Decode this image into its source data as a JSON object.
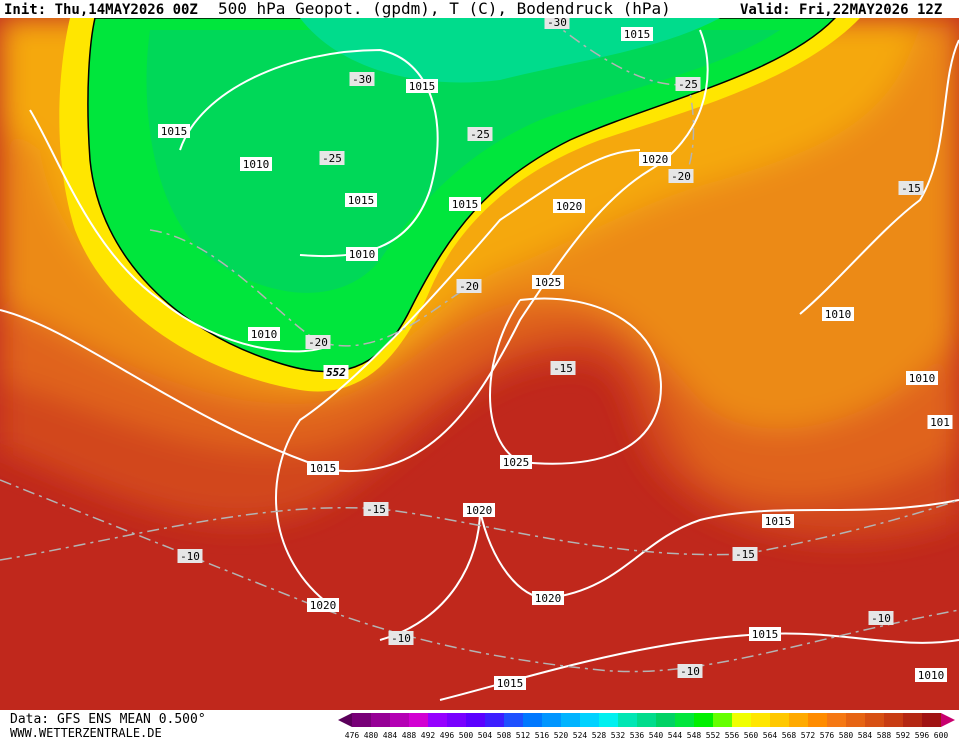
{
  "header": {
    "init": "Init: Thu,14MAY2026 00Z",
    "title": "500 hPa Geopot. (gpdm), T (C), Bodendruck (hPa)",
    "valid": "Valid: Fri,22MAY2026 12Z"
  },
  "footer": {
    "source": "Data: GFS ENS MEAN 0.500°",
    "site": "WWW.WETTERZENTRALE.DE"
  },
  "contour_labels": [
    1015,
    -30,
    1015,
    -30,
    -25,
    1015,
    -25,
    1010,
    -25,
    1020,
    -20,
    1015,
    1015,
    1020,
    -15,
    1010,
    -20,
    1025,
    1010,
    1010,
    -20,
    552,
    -15,
    1010,
    101,
    1025,
    1015,
    -15,
    1020,
    1015,
    -10,
    -15,
    1020,
    1020,
    -10,
    -10,
    1015,
    -10,
    1015,
    1010
  ],
  "scale": {
    "labels": [
      476,
      480,
      484,
      488,
      492,
      496,
      500,
      504,
      508,
      512,
      516,
      520,
      524,
      528,
      532,
      536,
      540,
      544,
      548,
      552,
      556,
      560,
      564,
      568,
      572,
      576,
      580,
      584,
      588,
      592,
      596,
      600
    ],
    "colors": [
      "#5a005a",
      "#780078",
      "#960096",
      "#b400b4",
      "#d200d2",
      "#9600ff",
      "#7800ff",
      "#5a00ff",
      "#3c1eff",
      "#1e50ff",
      "#0078ff",
      "#0096ff",
      "#00b4ff",
      "#00d2ff",
      "#00f0f0",
      "#00e6b4",
      "#00dc8c",
      "#00d264",
      "#00e63c",
      "#00f000",
      "#64ff00",
      "#f0ff00",
      "#ffe600",
      "#ffc800",
      "#ffaa00",
      "#ff8c00",
      "#f57814",
      "#e66414",
      "#d75014",
      "#c83c14",
      "#b42814",
      "#a01414",
      "#c8006e"
    ]
  }
}
